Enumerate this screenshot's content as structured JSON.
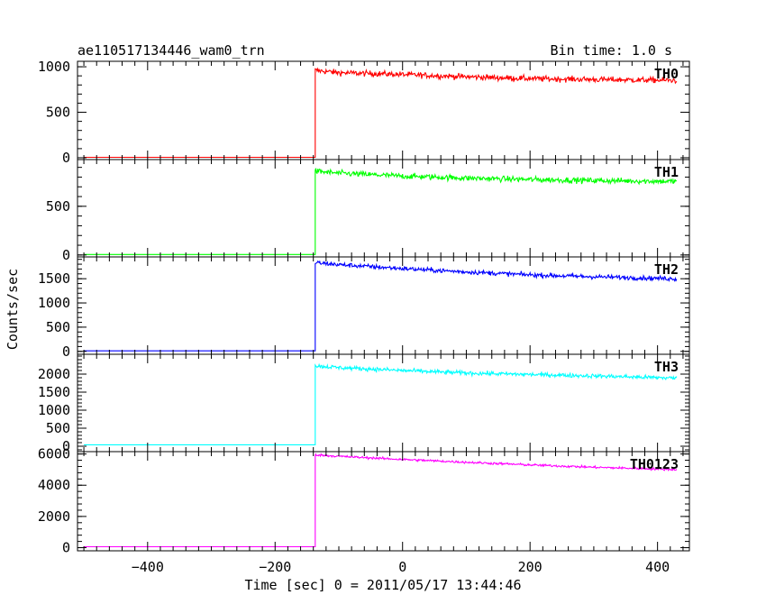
{
  "chart_data": {
    "type": "line",
    "title": "ae110517134446_wam0_trn",
    "subtitle": "Bin time: 1.0 s",
    "xlabel": "Time [sec] 0 = 2011/05/17 13:44:46",
    "ylabel": "Counts/sec",
    "xlim": [
      -510,
      450
    ],
    "xticks": [
      -400,
      -200,
      0,
      200,
      400
    ],
    "grid": false,
    "step_time": -137,
    "x_end": 430,
    "panels": [
      {
        "name": "TH0",
        "color": "#ff0000",
        "ylim": [
          -20,
          1060
        ],
        "yticks": [
          0,
          500,
          1000
        ],
        "baseline": 5,
        "x": [
          -137,
          -100,
          0,
          100,
          200,
          300,
          430
        ],
        "y": [
          960,
          935,
          915,
          890,
          870,
          860,
          850
        ],
        "noise": 30
      },
      {
        "name": "TH1",
        "color": "#00ff00",
        "ylim": [
          -20,
          980
        ],
        "yticks": [
          0,
          500
        ],
        "baseline": 5,
        "x": [
          -137,
          -100,
          0,
          100,
          200,
          300,
          430
        ],
        "y": [
          860,
          840,
          810,
          790,
          775,
          765,
          755
        ],
        "noise": 28
      },
      {
        "name": "TH2",
        "color": "#0000ff",
        "ylim": [
          -60,
          1950
        ],
        "yticks": [
          0,
          500,
          1000,
          1500
        ],
        "baseline": 10,
        "x": [
          -137,
          -100,
          0,
          100,
          200,
          300,
          430
        ],
        "y": [
          1830,
          1790,
          1710,
          1640,
          1580,
          1540,
          1500
        ],
        "noise": 45
      },
      {
        "name": "TH3",
        "color": "#00ffff",
        "ylim": [
          -150,
          2550
        ],
        "yticks": [
          0,
          500,
          1000,
          1500,
          2000
        ],
        "baseline": 40,
        "x": [
          -137,
          -100,
          0,
          100,
          200,
          300,
          430
        ],
        "y": [
          2230,
          2180,
          2100,
          2030,
          1990,
          1950,
          1890
        ],
        "noise": 55
      },
      {
        "name": "TH0123",
        "color": "#ff00ff",
        "ylim": [
          -200,
          6150
        ],
        "yticks": [
          0,
          2000,
          4000,
          6000
        ],
        "baseline": 60,
        "x": [
          -137,
          -100,
          0,
          100,
          200,
          300,
          430
        ],
        "y": [
          5950,
          5850,
          5650,
          5470,
          5300,
          5150,
          5000
        ],
        "noise": 70
      }
    ]
  }
}
